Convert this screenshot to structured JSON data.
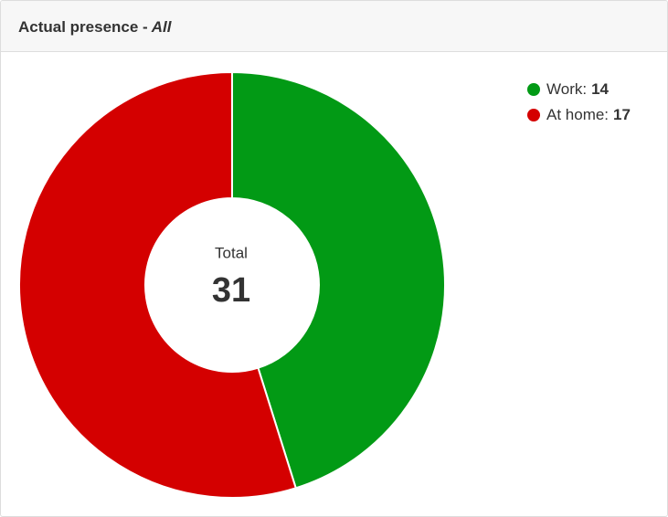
{
  "chart_data": {
    "type": "pie",
    "donut": true,
    "title": "Actual presence -",
    "title_filter": "All",
    "categories": [
      "Work:",
      "At home:"
    ],
    "values": [
      14,
      17
    ],
    "colors": [
      "#029a15",
      "#d40000"
    ],
    "center_label": "Total",
    "total": 31
  }
}
